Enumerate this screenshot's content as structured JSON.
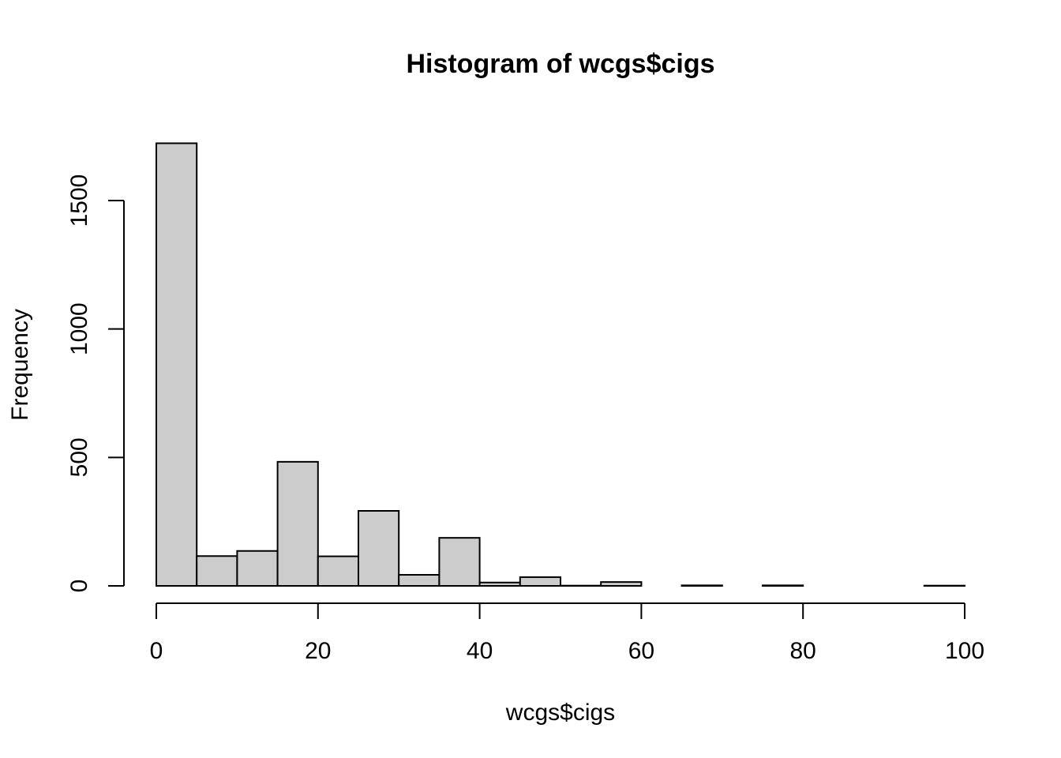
{
  "chart_data": {
    "type": "bar",
    "title": "Histogram of wcgs$cigs",
    "xlabel": "wcgs$cigs",
    "ylabel": "Frequency",
    "bin_width": 5,
    "bins": [
      {
        "x0": 0,
        "x1": 5,
        "count": 1723
      },
      {
        "x0": 5,
        "x1": 10,
        "count": 116
      },
      {
        "x0": 10,
        "x1": 15,
        "count": 136
      },
      {
        "x0": 15,
        "x1": 20,
        "count": 483
      },
      {
        "x0": 20,
        "x1": 25,
        "count": 115
      },
      {
        "x0": 25,
        "x1": 30,
        "count": 292
      },
      {
        "x0": 30,
        "x1": 35,
        "count": 43
      },
      {
        "x0": 35,
        "x1": 40,
        "count": 187
      },
      {
        "x0": 40,
        "x1": 45,
        "count": 13
      },
      {
        "x0": 45,
        "x1": 50,
        "count": 34
      },
      {
        "x0": 50,
        "x1": 55,
        "count": 1
      },
      {
        "x0": 55,
        "x1": 60,
        "count": 15
      },
      {
        "x0": 60,
        "x1": 65,
        "count": 0
      },
      {
        "x0": 65,
        "x1": 70,
        "count": 2
      },
      {
        "x0": 70,
        "x1": 75,
        "count": 0
      },
      {
        "x0": 75,
        "x1": 80,
        "count": 2
      },
      {
        "x0": 80,
        "x1": 85,
        "count": 0
      },
      {
        "x0": 85,
        "x1": 90,
        "count": 0
      },
      {
        "x0": 90,
        "x1": 95,
        "count": 0
      },
      {
        "x0": 95,
        "x1": 100,
        "count": 1
      }
    ],
    "x_ticks": [
      0,
      20,
      40,
      60,
      80,
      100
    ],
    "y_ticks": [
      0,
      500,
      1000,
      1500
    ],
    "xlim": [
      0,
      100
    ],
    "ylim": [
      0,
      1723
    ],
    "grid": false,
    "bar_color": "#cccccc",
    "border_color": "#000000"
  }
}
